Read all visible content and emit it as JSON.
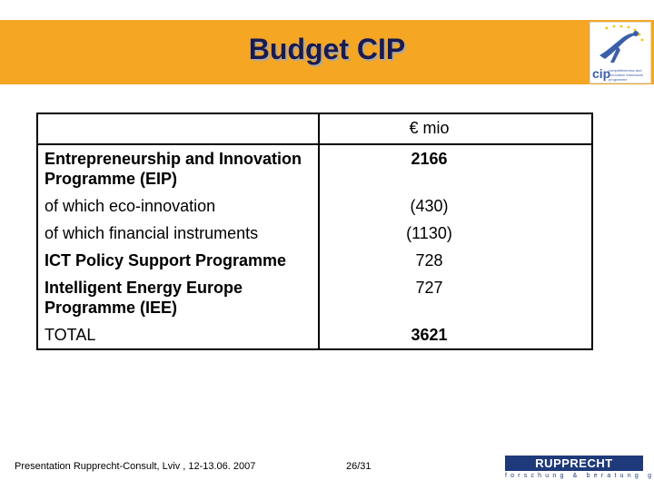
{
  "slide": {
    "title": "Budget CIP"
  },
  "logo": {
    "lettering": "cip",
    "tagline": "competitiveness and innovation framework programme",
    "icon": "leaping-figure-with-stars-icon"
  },
  "table": {
    "header": {
      "label": "",
      "value": "€ mio"
    },
    "rows": [
      {
        "label": "Entrepreneurship and Innovation Programme (EIP)",
        "value": "2166",
        "bold": true
      },
      {
        "label": "of which eco-innovation",
        "value": "(430)",
        "bold": false
      },
      {
        "label": "of which financial instruments",
        "value": "(1130)",
        "bold": false
      },
      {
        "label": "ICT Policy Support Programme",
        "value": "728",
        "bold_label": true
      },
      {
        "label": "Intelligent Energy Europe Programme (IEE)",
        "value": "727",
        "bold_label": true
      },
      {
        "label": "TOTAL",
        "value": "3621",
        "bold": true
      }
    ]
  },
  "footer": {
    "presentation": "Presentation Rupprecht-Consult, Lviv , 12-13.06. 2007",
    "page": "26/31"
  },
  "company_logo": {
    "name": "RUPPRECHT CONSULT",
    "tagline": "forschung & beratung gmbh"
  },
  "colors": {
    "header_band": "#f5a623",
    "title": "#1a1a4e",
    "company_blue": "#1f3a7a"
  }
}
